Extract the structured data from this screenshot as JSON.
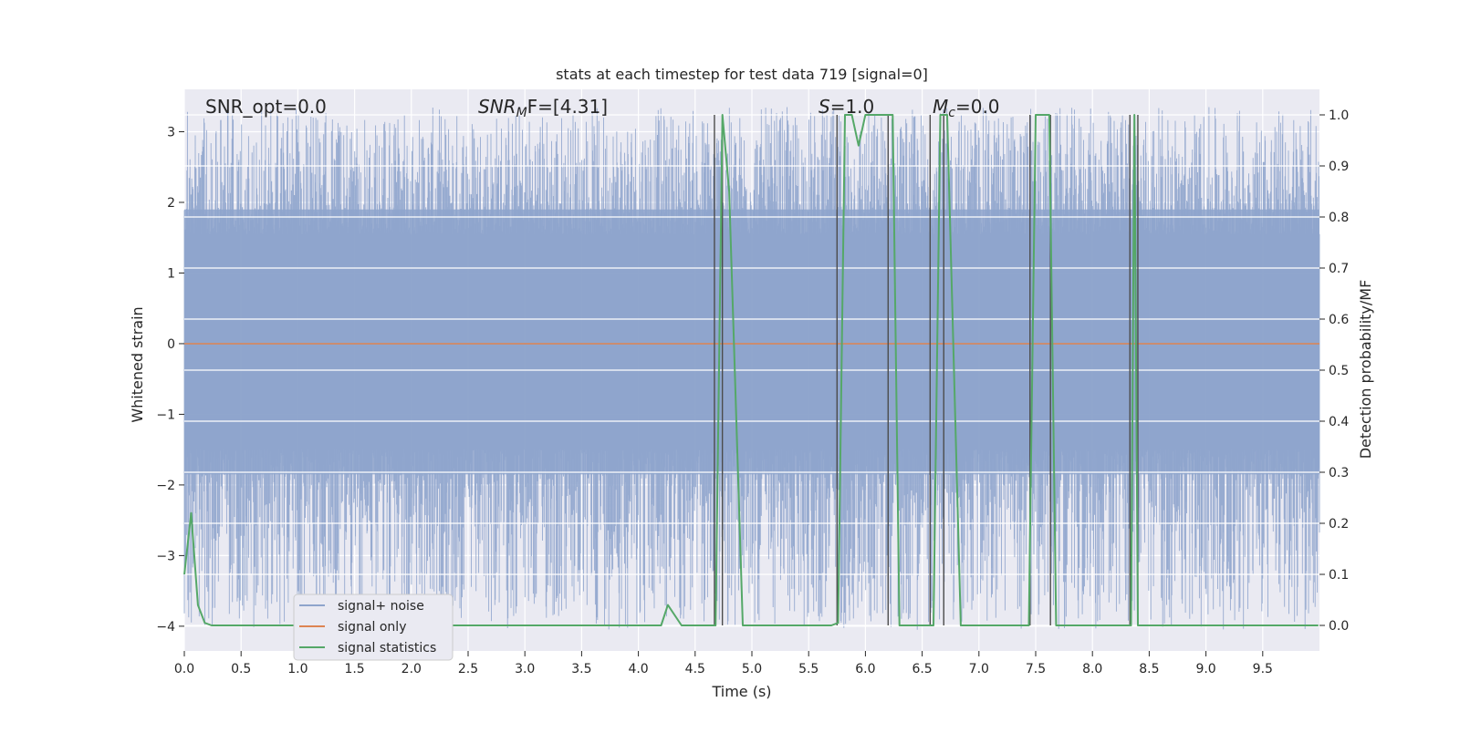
{
  "chart_data": {
    "type": "line",
    "title": "stats at each timestep for test data 719 [signal=0]",
    "xlabel": "Time (s)",
    "ylabel_left": "Whitened strain",
    "ylabel_right": "Detection probability/MF",
    "xlim": [
      0,
      10
    ],
    "ylim_left": [
      -4.35,
      3.6
    ],
    "ylim_right": [
      -0.05,
      1.05
    ],
    "x_ticks": [
      "0.0",
      "0.5",
      "1.0",
      "1.5",
      "2.0",
      "2.5",
      "3.0",
      "3.5",
      "4.0",
      "4.5",
      "5.0",
      "5.5",
      "6.0",
      "6.5",
      "7.0",
      "7.5",
      "8.0",
      "8.5",
      "9.0",
      "9.5"
    ],
    "y_ticks_left": [
      "−4",
      "−3",
      "−2",
      "−1",
      "0",
      "1",
      "2",
      "3"
    ],
    "y_ticks_right": [
      "0.0",
      "0.1",
      "0.2",
      "0.3",
      "0.4",
      "0.5",
      "0.6",
      "0.7",
      "0.8",
      "0.9",
      "1.0"
    ],
    "grid": true,
    "legend_position": "lower-left",
    "annotations": {
      "snr_opt": "SNR_opt=0.0",
      "snr_mf_sym": "SNR",
      "snr_mf_sub": "M",
      "snr_mf_rest": "F=[4.31]",
      "s_sym": "S",
      "s_rest": "=1.0",
      "mc_sym": "M",
      "mc_sub": "c",
      "mc_rest": "=0.0"
    },
    "series": [
      {
        "name": "signal+ noise",
        "color": "#8ea4cc",
        "description_kind": "whitened noise, approx. amplitude range",
        "envelope": {
          "core_low": -1.85,
          "core_high": 1.9,
          "spike_min": -4.05,
          "spike_max": 3.35
        }
      },
      {
        "name": "signal only",
        "color": "#dd8452",
        "x": [
          0,
          10
        ],
        "y": [
          0,
          0
        ]
      },
      {
        "name": "signal statistics",
        "color": "#55a868",
        "axis": "right",
        "x": [
          0.0,
          0.06,
          0.12,
          0.18,
          0.24,
          0.3,
          4.2,
          4.26,
          4.38,
          4.68,
          4.74,
          4.8,
          4.92,
          5.7,
          5.76,
          5.82,
          5.88,
          5.94,
          6.0,
          6.06,
          6.12,
          6.18,
          6.24,
          6.3,
          6.36,
          6.6,
          6.66,
          6.72,
          6.84,
          7.44,
          7.5,
          7.56,
          7.62,
          7.68,
          8.34,
          8.37,
          8.4,
          8.46,
          9.99
        ],
        "y": [
          0.1,
          0.22,
          0.04,
          0.005,
          0.0,
          0.0,
          0.0,
          0.04,
          0.0,
          0.0,
          1.0,
          0.85,
          0.0,
          0.0,
          0.005,
          1.0,
          1.0,
          0.94,
          1.0,
          1.0,
          1.0,
          1.0,
          1.0,
          0.0,
          0.0,
          0.0,
          1.0,
          1.0,
          0.0,
          0.0,
          1.0,
          1.0,
          1.0,
          0.0,
          0.0,
          1.0,
          0.0,
          0.0,
          0.0
        ]
      }
    ],
    "vertical_lines_x": [
      4.67,
      4.74,
      5.75,
      6.2,
      6.57,
      6.69,
      7.45,
      7.63,
      8.33,
      8.4
    ],
    "vertical_line_color": "#4c4c4c",
    "colors": {
      "plot_bg": "#eaeaf2",
      "grid": "#ffffff",
      "legend_bg": "#eaeaf2"
    }
  }
}
